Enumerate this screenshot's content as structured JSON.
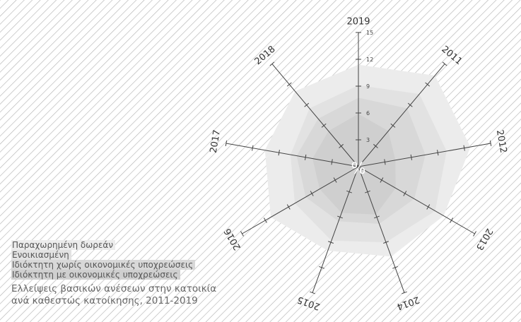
{
  "chart_data": {
    "type": "radar",
    "title": "Ελλείψεις βασικών ανέσεων στην κατοικία ανά καθεστώς κατοίκησης, 2011-2019",
    "caption_lines": [
      "Ελλείψεις βασικών ανέσεων στην κατοικία",
      "ανά καθεστώς κατοίκησης, 2011-2019"
    ],
    "unit_label": "%",
    "axes": [
      "2019",
      "2011",
      "2012",
      "2013",
      "2014",
      "2015",
      "2016",
      "2017",
      "2018"
    ],
    "rlim": [
      0,
      15
    ],
    "ticks": [
      3,
      6,
      9,
      12,
      15
    ],
    "tick_labels": [
      "3",
      "6",
      "9",
      "12",
      "15"
    ],
    "series": [
      {
        "name": "Παραχωρημένη δωρεάν",
        "color": "#ececec",
        "values": [
          11.4,
          13.3,
          12.7,
          11.0,
          10.7,
          10.0,
          11.3,
          10.6,
          11.0
        ]
      },
      {
        "name": "Ενοικιασμένη",
        "color": "#e2e2e2",
        "values": [
          9.1,
          10.6,
          10.0,
          9.9,
          9.0,
          8.8,
          8.2,
          7.7,
          8.5
        ]
      },
      {
        "name": "Ιδιόκτητη χωρίς οικονομικές υποχρεώσεις",
        "color": "#d8d8d8",
        "values": [
          7.7,
          8.5,
          7.6,
          7.2,
          6.8,
          6.5,
          6.8,
          7.0,
          7.0
        ]
      },
      {
        "name": "Ιδιόκτητη με οικονομικές υποχρεώσεις",
        "color": "#cfcfcf",
        "values": [
          5.9,
          5.2,
          4.2,
          4.8,
          5.7,
          5.5,
          5.0,
          5.2,
          5.2
        ]
      }
    ],
    "grid": false,
    "legend": "bottom-left"
  }
}
